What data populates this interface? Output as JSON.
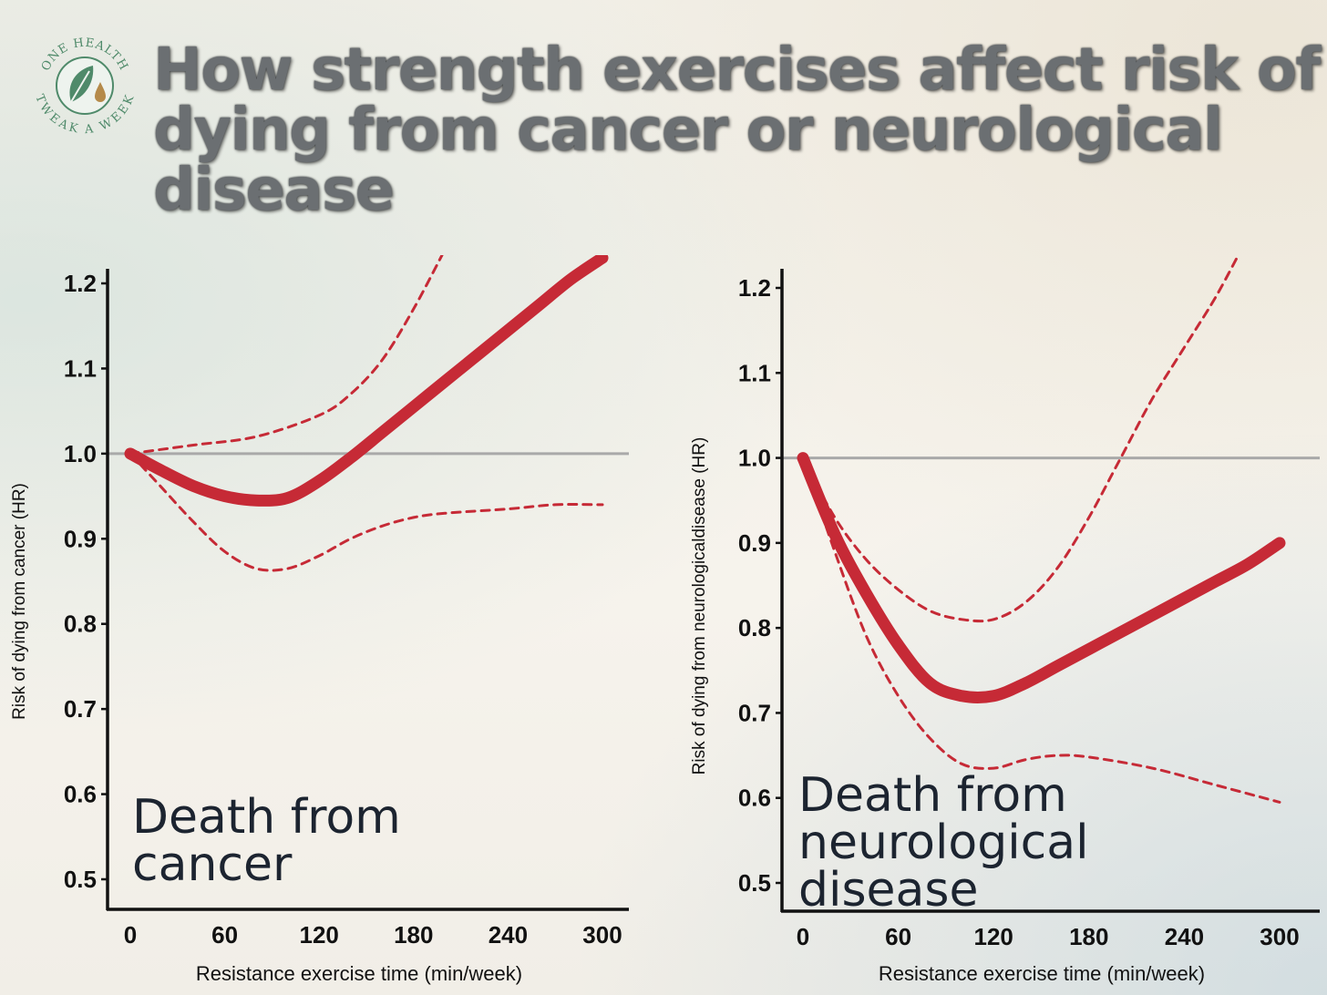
{
  "title": "How strength exercises affect risk of dying from cancer or neurological disease",
  "logo": {
    "top_text": "ONE HEALTH",
    "bottom_text": "TWEAK A WEEK",
    "icon": "leaf-drop-icon",
    "color": "#4f8a6a"
  },
  "colors": {
    "curve": "#c62a36",
    "reference": "#a9a9a9",
    "axis": "#111111"
  },
  "chart_data": [
    {
      "type": "line",
      "panel_title": [
        "Death from",
        "cancer"
      ],
      "xlabel": "Resistance exercise time (min/week)",
      "ylabel": "Risk of dying from cancer (HR)",
      "xlim": [
        0,
        300
      ],
      "ylim": [
        0.5,
        1.2
      ],
      "xticks": [
        "0",
        "60",
        "120",
        "180",
        "240",
        "300"
      ],
      "yticks": [
        "0.5",
        "0.6",
        "0.7",
        "0.8",
        "0.9",
        "1.0",
        "1.1",
        "1.2"
      ],
      "reference_line": 1.0,
      "series": [
        {
          "role": "estimate",
          "x": [
            0,
            20,
            40,
            60,
            80,
            100,
            120,
            140,
            160,
            180,
            200,
            220,
            240,
            260,
            280,
            300
          ],
          "y": [
            1.0,
            0.98,
            0.962,
            0.95,
            0.945,
            0.948,
            0.968,
            0.995,
            1.025,
            1.055,
            1.085,
            1.115,
            1.145,
            1.175,
            1.205,
            1.23
          ]
        },
        {
          "role": "upper_ci",
          "x": [
            0,
            40,
            80,
            120,
            140,
            160,
            180,
            200
          ],
          "y": [
            1.0,
            1.01,
            1.02,
            1.045,
            1.07,
            1.11,
            1.17,
            1.24
          ]
        },
        {
          "role": "lower_ci",
          "x": [
            0,
            20,
            40,
            60,
            80,
            100,
            120,
            140,
            160,
            180,
            200,
            240,
            270,
            300
          ],
          "y": [
            1.0,
            0.96,
            0.92,
            0.885,
            0.865,
            0.865,
            0.88,
            0.9,
            0.915,
            0.925,
            0.93,
            0.935,
            0.94,
            0.94
          ]
        }
      ]
    },
    {
      "type": "line",
      "panel_title": [
        "Death from",
        "neurological",
        "disease"
      ],
      "xlabel": "Resistance exercise time (min/week)",
      "ylabel": "Risk of dying from neurologicaldisease (HR)",
      "xlim": [
        0,
        300
      ],
      "ylim": [
        0.5,
        1.2
      ],
      "xticks": [
        "0",
        "60",
        "120",
        "180",
        "240",
        "300"
      ],
      "yticks": [
        "0.5",
        "0.6",
        "0.7",
        "0.8",
        "0.9",
        "1.0",
        "1.1",
        "1.2"
      ],
      "reference_line": 1.0,
      "series": [
        {
          "role": "estimate",
          "x": [
            0,
            20,
            40,
            60,
            80,
            100,
            120,
            140,
            160,
            180,
            200,
            220,
            240,
            260,
            280,
            300
          ],
          "y": [
            1.0,
            0.91,
            0.84,
            0.78,
            0.735,
            0.72,
            0.72,
            0.735,
            0.755,
            0.775,
            0.795,
            0.815,
            0.835,
            0.855,
            0.875,
            0.9
          ]
        },
        {
          "role": "upper_ci",
          "x": [
            0,
            20,
            40,
            60,
            80,
            100,
            120,
            140,
            160,
            180,
            200,
            220,
            240,
            260,
            280
          ],
          "y": [
            1.0,
            0.93,
            0.88,
            0.845,
            0.82,
            0.81,
            0.81,
            0.83,
            0.87,
            0.93,
            1.0,
            1.07,
            1.13,
            1.19,
            1.26
          ]
        },
        {
          "role": "lower_ci",
          "x": [
            0,
            20,
            40,
            60,
            80,
            100,
            120,
            140,
            160,
            180,
            220,
            260,
            300
          ],
          "y": [
            1.0,
            0.89,
            0.79,
            0.72,
            0.67,
            0.64,
            0.635,
            0.645,
            0.65,
            0.648,
            0.635,
            0.615,
            0.595
          ]
        }
      ]
    }
  ]
}
